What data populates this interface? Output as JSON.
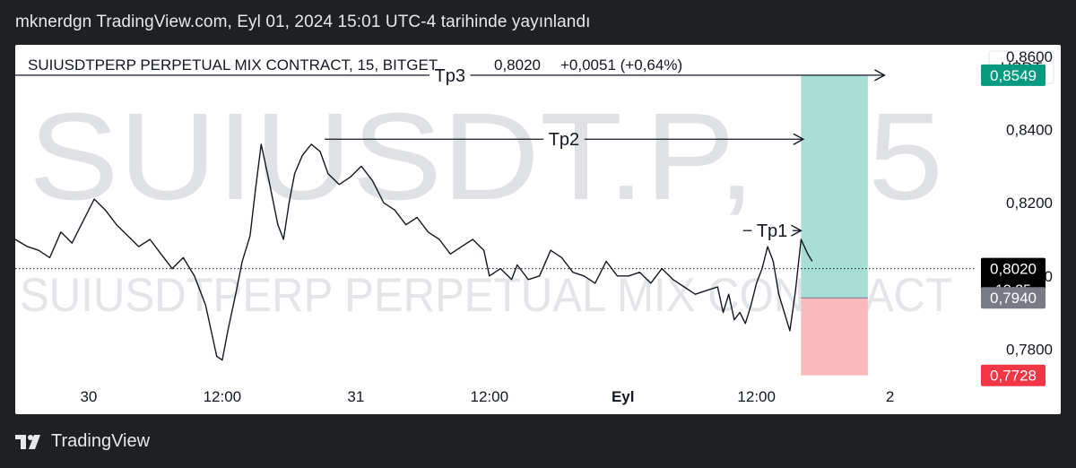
{
  "header": {
    "text": "mknerdgn TradingView.com, Eyl 01, 2024 15:01 UTC-4 tarihinde yayınlandı"
  },
  "footer": {
    "brand": "TradingView"
  },
  "chart_info": {
    "legend": "SUIUSDTPERP PERPETUAL MIX CONTRACT, 15, BITGET",
    "last": "0,8020",
    "change": "+0,0051 (+0,64%)",
    "currency": "USDT",
    "watermark_big": "SUIUSDT.P, 15",
    "watermark_small": "SUIUSDTPERP PERPETUAL MIX CONTRACT"
  },
  "chart_data": {
    "type": "line",
    "title": "SUIUSDTPERP PERPETUAL MIX CONTRACT, 15, BITGET",
    "xlabel": "",
    "ylabel": "",
    "y_ticks": [
      "0,7800",
      "0,8000",
      "0,8200",
      "0,8400",
      "0,8600"
    ],
    "x_ticks": [
      {
        "label": "30",
        "t": 0
      },
      {
        "label": "12:00",
        "t": 12
      },
      {
        "label": "31",
        "t": 24
      },
      {
        "label": "12:00",
        "t": 36
      },
      {
        "label": "Eyl",
        "t": 48
      },
      {
        "label": "12:00",
        "t": 60
      },
      {
        "label": "2",
        "t": 72
      }
    ],
    "ylim": [
      0.7715,
      0.8632
    ],
    "xlim": [
      -6.6,
      79.6
    ],
    "price": {
      "t": [
        -6.6,
        -5.5,
        -4.5,
        -3.5,
        -2.5,
        -1.5,
        -0.5,
        0.5,
        1.5,
        2.5,
        3.5,
        4.5,
        5.5,
        6.5,
        7.5,
        8.5,
        9.5,
        10.5,
        11.0,
        11.5,
        12.0,
        12.5,
        13.2,
        13.8,
        14.5,
        15.0,
        15.5,
        16.2,
        17.0,
        17.5,
        18.0,
        18.5,
        19.2,
        20.0,
        20.8,
        21.5,
        22.5,
        23.5,
        24.5,
        25.5,
        26.5,
        27.5,
        28.5,
        29.5,
        30.5,
        31.5,
        32.5,
        33.5,
        34.5,
        35.5,
        36.0,
        37.0,
        38.0,
        38.5,
        39.5,
        40.5,
        41.5,
        42.5,
        43.5,
        44.5,
        45.5,
        46.5,
        47.5,
        48.5,
        49.5,
        50.5,
        51.5,
        52.5,
        53.5,
        54.5,
        55.5,
        56.5,
        57.0,
        57.5,
        58.0,
        58.5,
        59.0,
        59.5,
        60.0,
        60.5,
        61.0,
        61.5,
        62.0,
        62.5,
        63.0,
        63.5,
        64.0,
        64.6,
        65.0
      ],
      "y": [
        0.81,
        0.808,
        0.807,
        0.805,
        0.812,
        0.809,
        0.815,
        0.821,
        0.818,
        0.814,
        0.811,
        0.808,
        0.81,
        0.806,
        0.802,
        0.805,
        0.8,
        0.792,
        0.785,
        0.778,
        0.777,
        0.785,
        0.795,
        0.804,
        0.811,
        0.824,
        0.836,
        0.826,
        0.814,
        0.81,
        0.82,
        0.828,
        0.833,
        0.836,
        0.834,
        0.828,
        0.825,
        0.827,
        0.83,
        0.826,
        0.82,
        0.818,
        0.814,
        0.816,
        0.812,
        0.81,
        0.806,
        0.808,
        0.81,
        0.807,
        0.8,
        0.802,
        0.799,
        0.803,
        0.799,
        0.8,
        0.807,
        0.805,
        0.801,
        0.8,
        0.798,
        0.804,
        0.8,
        0.8,
        0.801,
        0.798,
        0.802,
        0.799,
        0.797,
        0.795,
        0.796,
        0.797,
        0.79,
        0.795,
        0.788,
        0.79,
        0.787,
        0.792,
        0.798,
        0.802,
        0.808,
        0.804,
        0.795,
        0.79,
        0.785,
        0.796,
        0.81,
        0.806,
        0.804
      ]
    },
    "levels": [
      {
        "name": "Tp3",
        "value": 0.8549,
        "t_from": -6.6,
        "t_to": 71.5
      },
      {
        "name": "Tp2",
        "value": 0.8374,
        "t_from": 21.2,
        "t_to": 64.2
      },
      {
        "name": "Tp1",
        "value": 0.8124,
        "t_from": 58.8,
        "t_to": 64.0
      }
    ],
    "position": {
      "entry": 0.794,
      "take_profit": 0.8549,
      "stop_loss": 0.7728,
      "t_from": 64.0,
      "t_to": 70.0
    },
    "last_price": 0.802,
    "price_labels": [
      {
        "value": 0.8549,
        "text": "0,8549",
        "color": "#089981",
        "subtext": ""
      },
      {
        "value": 0.802,
        "text": "0,8020",
        "color": "#000000",
        "subtext": "13:25"
      },
      {
        "value": 0.794,
        "text": "0,7940",
        "color": "#787b86",
        "subtext": ""
      },
      {
        "value": 0.7728,
        "text": "0,7728",
        "color": "#f23645",
        "subtext": ""
      }
    ],
    "colors": {
      "price": "#131722",
      "target_zone": "#a7dfd5",
      "stop_zone": "#f9b9bd",
      "grid": false
    }
  }
}
